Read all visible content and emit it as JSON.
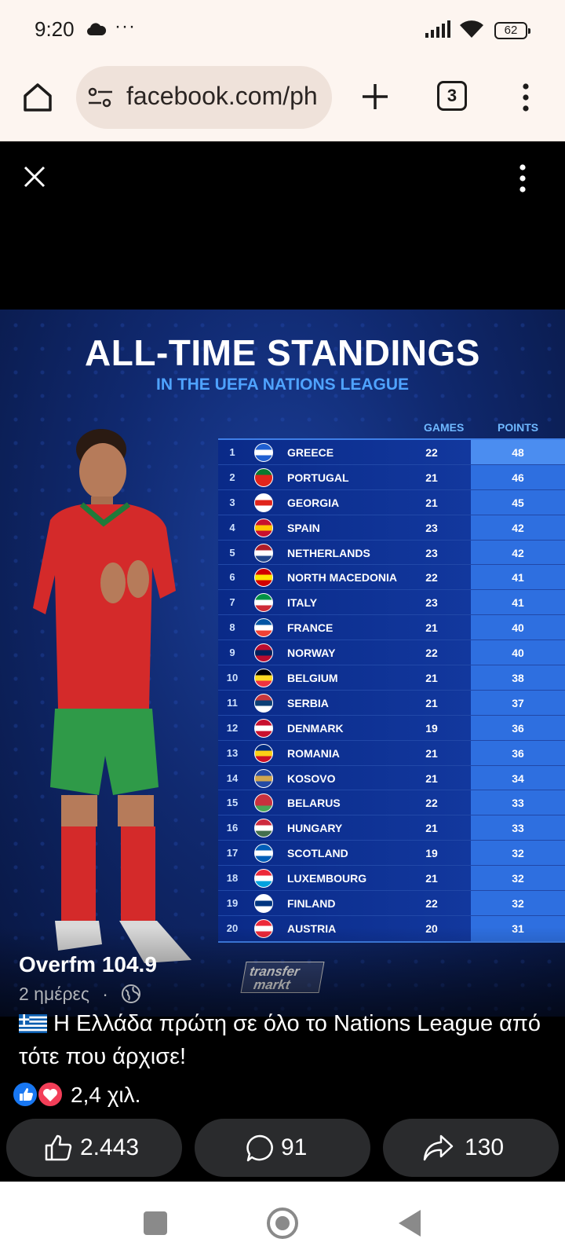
{
  "status_bar": {
    "time": "9:20",
    "dots": "···",
    "battery": "62"
  },
  "browser": {
    "url": "facebook.com/ph",
    "tab_count": "3"
  },
  "graphic": {
    "title": "ALL-TIME STANDINGS",
    "subtitle": "IN THE UEFA NATIONS LEAGUE",
    "col_games": "GAMES",
    "col_points": "POINTS",
    "watermark_line1": "transfer",
    "watermark_line2": "markt",
    "rows": [
      {
        "rank": "1",
        "country": "GREECE",
        "games": "22",
        "points": "48",
        "flag": [
          "#1f5fd1",
          "#ffffff",
          "#1f5fd1"
        ]
      },
      {
        "rank": "2",
        "country": "PORTUGAL",
        "games": "21",
        "points": "46",
        "flag": [
          "#0a7a2e",
          "#e1251b",
          "#e1251b"
        ]
      },
      {
        "rank": "3",
        "country": "GEORGIA",
        "games": "21",
        "points": "45",
        "flag": [
          "#ffffff",
          "#e1251b",
          "#ffffff"
        ]
      },
      {
        "rank": "4",
        "country": "SPAIN",
        "games": "23",
        "points": "42",
        "flag": [
          "#c8102e",
          "#ffc400",
          "#c8102e"
        ]
      },
      {
        "rank": "5",
        "country": "NETHERLANDS",
        "games": "23",
        "points": "42",
        "flag": [
          "#ae1c28",
          "#ffffff",
          "#21468b"
        ]
      },
      {
        "rank": "6",
        "country": "NORTH MACEDONIA",
        "games": "22",
        "points": "41",
        "flag": [
          "#d20000",
          "#ffe600",
          "#d20000"
        ]
      },
      {
        "rank": "7",
        "country": "ITALY",
        "games": "23",
        "points": "41",
        "flag": [
          "#009246",
          "#ffffff",
          "#ce2b37"
        ]
      },
      {
        "rank": "8",
        "country": "FRANCE",
        "games": "21",
        "points": "40",
        "flag": [
          "#0055a4",
          "#ffffff",
          "#ef4135"
        ]
      },
      {
        "rank": "9",
        "country": "NORWAY",
        "games": "22",
        "points": "40",
        "flag": [
          "#ba0c2f",
          "#00205b",
          "#ba0c2f"
        ]
      },
      {
        "rank": "10",
        "country": "BELGIUM",
        "games": "21",
        "points": "38",
        "flag": [
          "#000000",
          "#fdda24",
          "#ef3340"
        ]
      },
      {
        "rank": "11",
        "country": "SERBIA",
        "games": "21",
        "points": "37",
        "flag": [
          "#c6363c",
          "#0c4076",
          "#ffffff"
        ]
      },
      {
        "rank": "12",
        "country": "DENMARK",
        "games": "19",
        "points": "36",
        "flag": [
          "#c8102e",
          "#ffffff",
          "#c8102e"
        ]
      },
      {
        "rank": "13",
        "country": "ROMANIA",
        "games": "21",
        "points": "36",
        "flag": [
          "#002b7f",
          "#fcd116",
          "#ce1126"
        ]
      },
      {
        "rank": "14",
        "country": "KOSOVO",
        "games": "21",
        "points": "34",
        "flag": [
          "#244aa5",
          "#d0a650",
          "#244aa5"
        ]
      },
      {
        "rank": "15",
        "country": "BELARUS",
        "games": "22",
        "points": "33",
        "flag": [
          "#c8313e",
          "#c8313e",
          "#4aa657"
        ]
      },
      {
        "rank": "16",
        "country": "HUNGARY",
        "games": "21",
        "points": "33",
        "flag": [
          "#cd2a3e",
          "#ffffff",
          "#436f4d"
        ]
      },
      {
        "rank": "17",
        "country": "SCOTLAND",
        "games": "19",
        "points": "32",
        "flag": [
          "#005eb8",
          "#ffffff",
          "#005eb8"
        ]
      },
      {
        "rank": "18",
        "country": "LUXEMBOURG",
        "games": "21",
        "points": "32",
        "flag": [
          "#ed2939",
          "#ffffff",
          "#00a1de"
        ]
      },
      {
        "rank": "19",
        "country": "FINLAND",
        "games": "22",
        "points": "32",
        "flag": [
          "#ffffff",
          "#003580",
          "#ffffff"
        ]
      },
      {
        "rank": "20",
        "country": "AUSTRIA",
        "games": "20",
        "points": "31",
        "flag": [
          "#ed2939",
          "#ffffff",
          "#ed2939"
        ]
      }
    ]
  },
  "post": {
    "author": "Overfm 104.9",
    "time": "2 ημέρες",
    "separator": "·",
    "caption": "Η Ελλάδα πρώτη σε όλο το Nations League από τότε που άρχισε!",
    "reaction_count": "2,4 χιλ.",
    "likes": "2.443",
    "comments": "91",
    "shares": "130"
  }
}
